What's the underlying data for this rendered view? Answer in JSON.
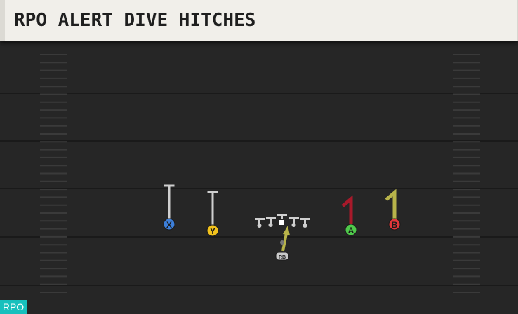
{
  "title": "RPO ALERT DIVE HITCHES",
  "badge": "RPO",
  "players": [
    {
      "label": "X",
      "color": "#3d7fd9"
    },
    {
      "label": "Y",
      "color": "#f2c21c"
    },
    {
      "label": "A",
      "color": "#4fc94b"
    },
    {
      "label": "B",
      "color": "#e2373a"
    },
    {
      "label": "RB",
      "color": "#c9c9c9"
    }
  ],
  "colors": {
    "field": "#262626",
    "yard_line": "#1a1a1a",
    "hash": "#3a3a3a",
    "lineman": "#cfcfcf",
    "route_white": "#cfcfcf",
    "route_red": "#a8192a",
    "route_yellow": "#b8b44a"
  }
}
